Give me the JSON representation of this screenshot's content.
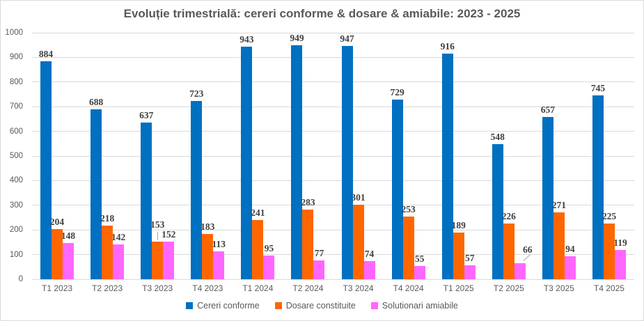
{
  "chart_data": {
    "type": "bar",
    "title": "Evoluție trimestrială: cereri conforme & dosare & amiabile: 2023 - 2025",
    "categories": [
      "T1 2023",
      "T2 2023",
      "T3 2023",
      "T4 2023",
      "T1 2024",
      "T2 2024",
      "T3 2024",
      "T4 2024",
      "T1 2025",
      "T2 2025",
      "T3 2025",
      "T4 2025"
    ],
    "series": [
      {
        "name": "Cereri conforme",
        "color": "#0070C0",
        "values": [
          884,
          688,
          637,
          723,
          943,
          949,
          947,
          729,
          916,
          548,
          657,
          745
        ]
      },
      {
        "name": "Dosare constituite",
        "color": "#FF6600",
        "values": [
          204,
          218,
          153,
          183,
          241,
          283,
          301,
          253,
          189,
          226,
          271,
          225
        ]
      },
      {
        "name": "Solutionari amiabile",
        "color": "#FF66FF",
        "values": [
          148,
          142,
          152,
          113,
          95,
          77,
          74,
          55,
          57,
          66,
          94,
          119
        ]
      }
    ],
    "ylim": [
      0,
      1000
    ],
    "ytick_step": 100,
    "ytick_labels": [
      "0",
      "100",
      "200",
      "300",
      "400",
      "500",
      "600",
      "700",
      "800",
      "900",
      "1000"
    ],
    "grid": true,
    "data_labels": true,
    "legend_position": "bottom",
    "label_callouts": [
      {
        "category": "T3 2023",
        "series": "Dosare constituite",
        "direction": "up"
      },
      {
        "category": "T2 2025",
        "series": "Solutionari amiabile",
        "direction": "up-right"
      }
    ],
    "styles": {
      "background": "#FFFFFF",
      "border_color": "#D9D9D9",
      "gridline_color": "#D9D9D9",
      "axis_text_color": "#595959",
      "data_label_color": "#404040",
      "title_color": "#595959",
      "leader_line_color": "#A6A6A6"
    }
  }
}
